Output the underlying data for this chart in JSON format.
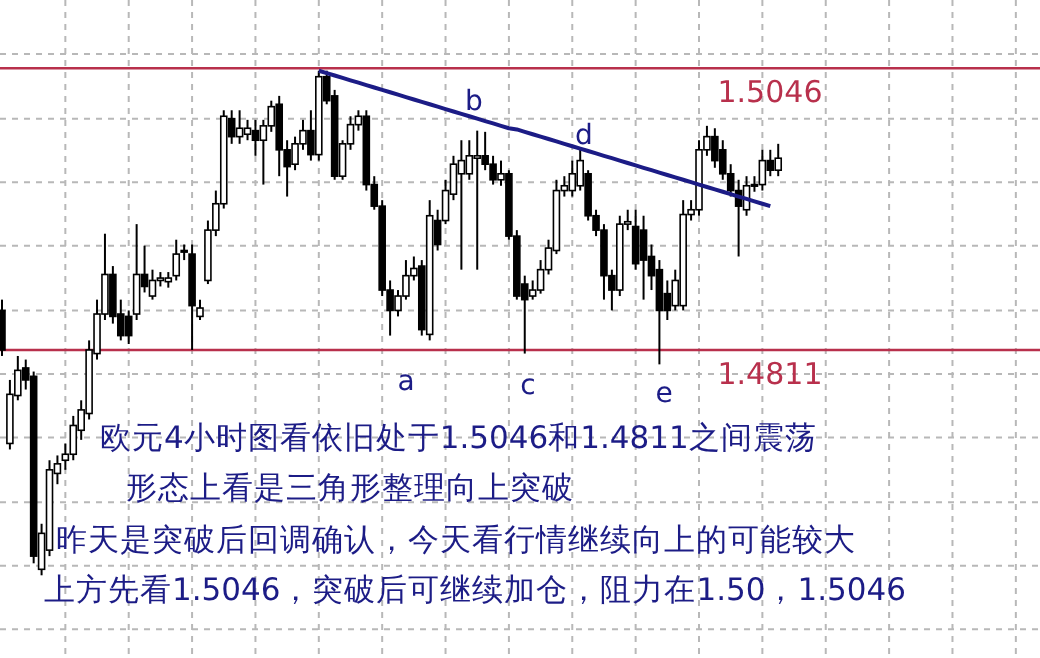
{
  "chart_data": {
    "type": "candlestick",
    "categories": [
      null,
      null,
      null,
      null,
      null,
      null,
      null,
      null,
      null,
      null,
      null,
      null,
      null,
      null,
      null,
      null,
      null,
      null,
      null,
      null,
      null,
      null,
      null,
      null,
      null,
      null,
      null,
      null,
      null,
      null,
      null,
      null,
      null,
      null,
      null,
      null,
      null,
      null,
      null,
      null,
      null,
      null,
      null,
      null,
      null,
      null,
      null,
      null,
      null,
      null,
      null,
      null,
      null,
      null,
      null,
      null,
      null,
      null,
      null,
      null,
      null,
      null,
      null,
      null,
      null,
      null,
      null,
      null,
      null,
      null,
      null,
      null,
      null,
      null,
      null,
      null,
      null,
      null,
      null,
      null,
      null,
      null,
      null,
      null,
      null,
      null,
      null,
      null,
      null,
      null,
      null,
      null,
      null,
      null,
      null,
      null,
      null,
      null,
      null
    ],
    "ohlc": [
      [
        1.4844,
        1.4853,
        1.4806,
        1.4811
      ],
      [
        1.4733,
        1.4786,
        1.4728,
        1.4774
      ],
      [
        1.4773,
        1.4806,
        1.4769,
        1.4794
      ],
      [
        1.4796,
        1.4803,
        1.4778,
        1.4786
      ],
      [
        1.4789,
        1.4793,
        1.4633,
        1.4639
      ],
      [
        1.4628,
        1.4666,
        1.4623,
        1.4658
      ],
      [
        1.4644,
        1.4719,
        1.4639,
        1.4711
      ],
      [
        1.4708,
        1.4723,
        1.4699,
        1.4716
      ],
      [
        1.4719,
        1.4733,
        1.4711,
        1.4724
      ],
      [
        1.4724,
        1.4756,
        1.4719,
        1.4748
      ],
      [
        1.4744,
        1.4769,
        1.4736,
        1.4761
      ],
      [
        1.4758,
        1.4819,
        1.4753,
        1.4811
      ],
      [
        1.4808,
        1.4853,
        1.4803,
        1.4841
      ],
      [
        1.4841,
        1.4908,
        1.4836,
        1.4874
      ],
      [
        1.4874,
        1.4881,
        1.4833,
        1.4839
      ],
      [
        1.4841,
        1.4853,
        1.4819,
        1.4823
      ],
      [
        1.4839,
        1.4844,
        1.4816,
        1.4823
      ],
      [
        1.4841,
        1.4916,
        1.4836,
        1.4874
      ],
      [
        1.4874,
        1.4898,
        1.4859,
        1.4864
      ],
      [
        1.4856,
        1.4878,
        1.4853,
        1.4869
      ],
      [
        1.4869,
        1.4876,
        1.4864,
        1.4871
      ],
      [
        1.4868,
        1.4876,
        1.4863,
        1.4871
      ],
      [
        1.4873,
        1.4903,
        1.4869,
        1.4891
      ],
      [
        1.4893,
        1.4899,
        1.4886,
        1.4894
      ],
      [
        1.4891,
        1.4899,
        1.4811,
        1.4848
      ],
      [
        1.4839,
        1.4853,
        1.4836,
        1.4846
      ],
      [
        1.4869,
        1.4919,
        1.4866,
        1.4911
      ],
      [
        1.4911,
        1.4944,
        1.4906,
        1.4933
      ],
      [
        1.4933,
        1.5011,
        1.4929,
        1.5006
      ],
      [
        1.5004,
        1.5011,
        1.4983,
        1.4989
      ],
      [
        1.4989,
        1.5011,
        1.4983,
        1.4996
      ],
      [
        1.4991,
        1.5003,
        1.4986,
        1.4996
      ],
      [
        1.4994,
        1.5003,
        1.4973,
        1.4986
      ],
      [
        1.4986,
        1.5003,
        1.4949,
        1.4998
      ],
      [
        1.4998,
        1.5019,
        1.4993,
        1.5014
      ],
      [
        1.5016,
        1.5023,
        1.4956,
        1.4978
      ],
      [
        1.4978,
        1.4986,
        1.4939,
        1.4964
      ],
      [
        1.4966,
        1.4989,
        1.4961,
        1.4983
      ],
      [
        1.4983,
        1.5003,
        1.4978,
        1.4994
      ],
      [
        1.4994,
        1.5011,
        1.4969,
        1.4974
      ],
      [
        1.4974,
        1.5044,
        1.4969,
        1.5039
      ],
      [
        1.5039,
        1.5044,
        1.5016,
        1.5019
      ],
      [
        1.5023,
        1.5028,
        1.4953,
        1.4956
      ],
      [
        1.4956,
        1.4986,
        1.4953,
        1.4983
      ],
      [
        1.4983,
        1.5006,
        1.4978,
        1.4999
      ],
      [
        1.4999,
        1.5011,
        1.4994,
        1.5006
      ],
      [
        1.5006,
        1.5011,
        1.4944,
        1.4949
      ],
      [
        1.4949,
        1.4956,
        1.4928,
        1.4931
      ],
      [
        1.4931,
        1.4936,
        1.4856,
        1.4861
      ],
      [
        1.4861,
        1.4869,
        1.4823,
        1.4844
      ],
      [
        1.4844,
        1.4861,
        1.4839,
        1.4856
      ],
      [
        1.4856,
        1.4886,
        1.4853,
        1.4873
      ],
      [
        1.4873,
        1.4889,
        1.4869,
        1.4879
      ],
      [
        1.4881,
        1.4886,
        1.4823,
        1.4828
      ],
      [
        1.4824,
        1.4936,
        1.4819,
        1.4923
      ],
      [
        1.4919,
        1.4928,
        1.4894,
        1.4899
      ],
      [
        1.4919,
        1.4953,
        1.4916,
        1.4944
      ],
      [
        1.4941,
        1.4973,
        1.4936,
        1.4966
      ],
      [
        1.4958,
        1.4986,
        1.4878,
        1.4969
      ],
      [
        1.4958,
        1.4986,
        1.4953,
        1.4973
      ],
      [
        1.4971,
        1.4994,
        1.4878,
        1.4973
      ],
      [
        1.4973,
        1.4993,
        1.4961,
        1.4966
      ],
      [
        1.4966,
        1.4973,
        1.4949,
        1.4953
      ],
      [
        1.4953,
        1.4969,
        1.4948,
        1.4958
      ],
      [
        1.4958,
        1.4961,
        1.4903,
        1.4906
      ],
      [
        1.4906,
        1.4911,
        1.4853,
        1.4856
      ],
      [
        1.4866,
        1.4873,
        1.4808,
        1.4853
      ],
      [
        1.4856,
        1.4869,
        1.4853,
        1.4861
      ],
      [
        1.4861,
        1.4886,
        1.4858,
        1.4878
      ],
      [
        1.4878,
        1.4903,
        1.4874,
        1.4896
      ],
      [
        1.4894,
        1.4953,
        1.4891,
        1.4944
      ],
      [
        1.4944,
        1.4956,
        1.4939,
        1.4948
      ],
      [
        1.4944,
        1.4969,
        1.4939,
        1.4958
      ],
      [
        1.4948,
        1.4978,
        1.4944,
        1.4969
      ],
      [
        1.4958,
        1.4961,
        1.4919,
        1.4923
      ],
      [
        1.4923,
        1.4928,
        1.4906,
        1.4911
      ],
      [
        1.4911,
        1.4916,
        1.4853,
        1.4873
      ],
      [
        1.4873,
        1.4878,
        1.4844,
        1.4861
      ],
      [
        1.4861,
        1.4923,
        1.4856,
        1.4916
      ],
      [
        1.4916,
        1.4928,
        1.4911,
        1.4918
      ],
      [
        1.4914,
        1.4928,
        1.4878,
        1.4883
      ],
      [
        1.4911,
        1.4923,
        1.4853,
        1.4886
      ],
      [
        1.4889,
        1.4899,
        1.4861,
        1.4873
      ],
      [
        1.4878,
        1.4886,
        1.4799,
        1.4844
      ],
      [
        1.4858,
        1.4869,
        1.4836,
        1.4844
      ],
      [
        1.4848,
        1.4878,
        1.4844,
        1.4869
      ],
      [
        1.4848,
        1.4936,
        1.4844,
        1.4924
      ],
      [
        1.4924,
        1.4936,
        1.4919,
        1.4928
      ],
      [
        1.4928,
        1.4986,
        1.4923,
        1.4978
      ],
      [
        1.4978,
        1.4998,
        1.4973,
        1.4989
      ],
      [
        1.4989,
        1.4996,
        1.4963,
        1.4969
      ],
      [
        1.4978,
        1.4986,
        1.4953,
        1.4958
      ],
      [
        1.4958,
        1.4966,
        1.4939,
        1.4944
      ],
      [
        1.4944,
        1.4953,
        1.4889,
        1.4931
      ],
      [
        1.4928,
        1.4956,
        1.4923,
        1.4948
      ],
      [
        1.4948,
        1.4956,
        1.4943,
        1.4949
      ],
      [
        1.4949,
        1.4978,
        1.4944,
        1.4969
      ],
      [
        1.4969,
        1.4978,
        1.4956,
        1.4961
      ],
      [
        1.4961,
        1.4983,
        1.4956,
        1.4971
      ]
    ],
    "series": [
      {
        "type": "line",
        "color": "#1c1c86",
        "values": [
          null,
          null,
          null,
          null,
          null,
          null,
          null,
          null,
          null,
          null,
          null,
          null,
          null,
          null,
          null,
          null,
          null,
          null,
          null,
          null,
          null,
          null,
          null,
          null,
          null,
          null,
          null,
          null,
          null,
          null,
          null,
          null,
          null,
          null,
          null,
          null,
          null,
          null,
          null,
          null,
          1.5044,
          1.5042,
          1.504,
          1.5038,
          1.5036,
          1.5034,
          1.5032,
          1.503,
          1.5028,
          1.5026,
          1.5024,
          1.5022,
          1.502,
          1.5018,
          1.5016,
          1.5014,
          1.5012,
          1.501,
          1.5008,
          1.5006,
          1.5004,
          1.5002,
          1.5,
          1.4998,
          1.4996,
          1.4995,
          1.4993,
          1.4991,
          1.4989,
          1.4987,
          1.4985,
          1.4983,
          1.4981,
          1.4979,
          1.4977,
          1.4975,
          1.4973,
          1.4971,
          1.4969,
          1.4967,
          1.4965,
          1.4963,
          1.4961,
          1.4959,
          1.4957,
          1.4955,
          1.4953,
          1.4951,
          1.4949,
          1.4947,
          1.4945,
          1.4943,
          1.4941,
          1.4939,
          1.4937,
          1.4935,
          1.4933,
          1.4931,
          null
        ]
      }
    ],
    "ylim": [
      1.4554,
      1.5103
    ],
    "yticks": [
      {
        "value": 1.5058,
        "label": null
      },
      {
        "value": 1.5004,
        "label": null
      },
      {
        "value": 1.4951,
        "label": null
      },
      {
        "value": 1.4898,
        "label": null
      },
      {
        "value": 1.4844,
        "label": null
      },
      {
        "value": 1.4791,
        "label": null
      },
      {
        "value": 1.4738,
        "label": null
      },
      {
        "value": 1.4684,
        "label": null
      },
      {
        "value": 1.4631,
        "label": null
      },
      {
        "value": 1.4578,
        "label": null
      }
    ],
    "grid": true,
    "ref_lines": [
      {
        "axis": "y",
        "value": 1.5046,
        "label": "1.5046",
        "color": "#b8304c"
      },
      {
        "axis": "y",
        "value": 1.4811,
        "label": "1.4811",
        "color": "#b8304c"
      }
    ],
    "annotations": [
      "a",
      "b",
      "c",
      "d",
      "e",
      "欧元4小时图看依旧处于1.5046和1.4811之间震荡",
      "形态上看是三角形整理向上突破",
      "昨天是突破后回调确认，今天看行情继续向上的可能较大",
      "上方先看1.5046，突破后可继续加仓，阻力在1.50，1.5046"
    ]
  }
}
